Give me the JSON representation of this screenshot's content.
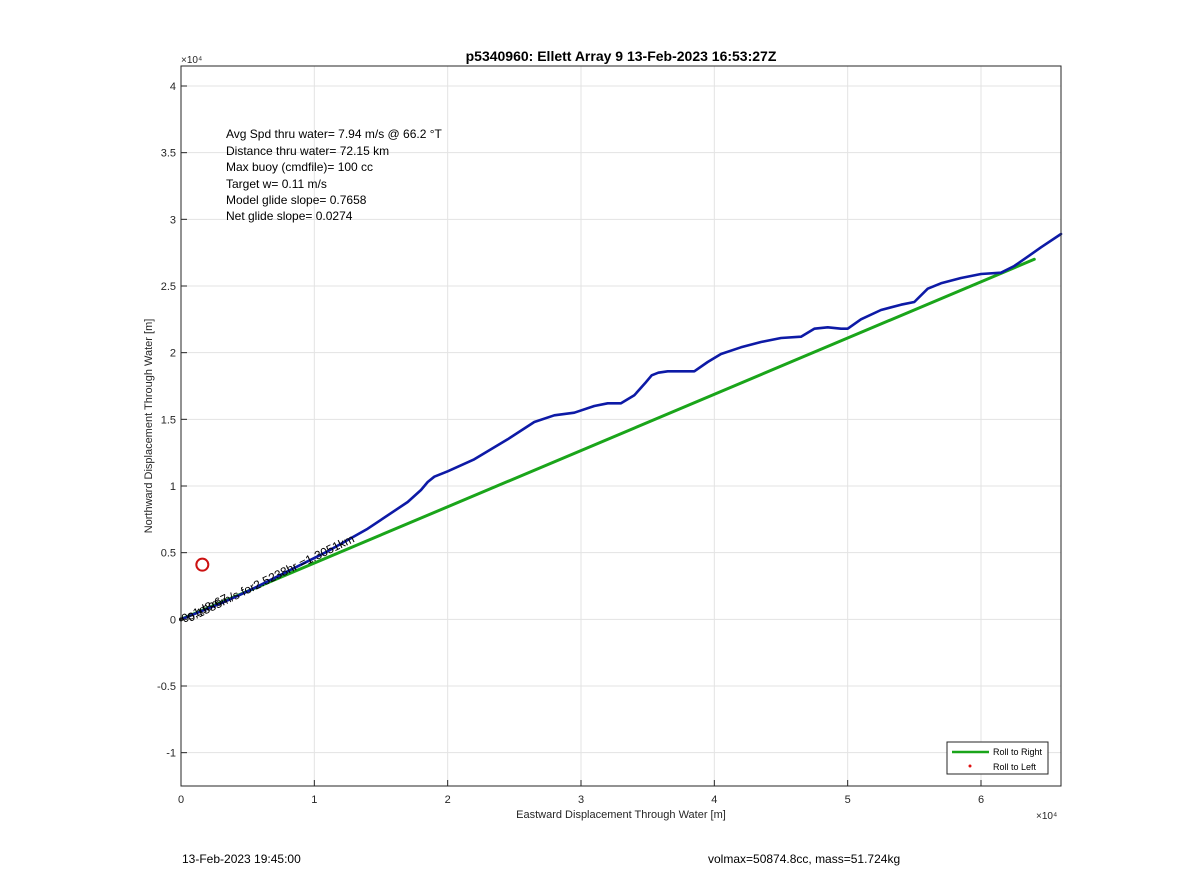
{
  "chart_data": {
    "type": "line",
    "title": "p5340960: Ellett Array 9 13-Feb-2023 16:53:27Z",
    "xlabel": "Eastward Displacement Through Water [m]",
    "ylabel": "Northward Displacement Through Water [m]",
    "xlim": [
      0,
      66000
    ],
    "ylim": [
      -12500,
      41500
    ],
    "x_ticks": [
      0,
      10000,
      20000,
      30000,
      40000,
      50000,
      60000
    ],
    "x_tick_labels": [
      "0",
      "1",
      "2",
      "3",
      "4",
      "5",
      "6"
    ],
    "y_ticks": [
      -10000,
      -5000,
      0,
      5000,
      10000,
      15000,
      20000,
      25000,
      30000,
      35000,
      40000
    ],
    "y_tick_labels": [
      "-1",
      "-0.5",
      "0",
      "0.5",
      "1",
      "1.5",
      "2",
      "2.5",
      "3",
      "3.5",
      "4"
    ],
    "x_exponent": "×10⁴",
    "y_exponent": "×10⁴",
    "grid": true,
    "legend_position": "bottom-right",
    "series": [
      {
        "name": "Roll to Right",
        "color": "#1aa51a",
        "x": [
          0,
          64000
        ],
        "y": [
          0,
          27000
        ]
      },
      {
        "color": "#0d1aa6",
        "x": [
          0,
          500,
          1500,
          3000,
          5000,
          8000,
          11000,
          14000,
          17000,
          18000,
          18500,
          19000,
          20000,
          22000,
          24500,
          26500,
          28000,
          29500,
          31000,
          32000,
          33000,
          34000,
          34800,
          35300,
          35800,
          36500,
          37500,
          38500,
          39500,
          40500,
          42000,
          43500,
          45000,
          46500,
          47500,
          48500,
          49500,
          50000,
          51000,
          52500,
          54000,
          55000,
          56000,
          57000,
          58500,
          60000,
          61500,
          62500,
          63500,
          64500,
          66000
        ],
        "y": [
          0,
          200,
          600,
          1200,
          2100,
          3600,
          5100,
          6800,
          8800,
          9700,
          10300,
          10700,
          11100,
          12000,
          13500,
          14800,
          15300,
          15500,
          16000,
          16200,
          16200,
          16800,
          17700,
          18300,
          18500,
          18600,
          18600,
          18600,
          19300,
          19900,
          20400,
          20800,
          21100,
          21200,
          21800,
          21900,
          21800,
          21800,
          22500,
          23200,
          23600,
          23800,
          24800,
          25200,
          25600,
          25900,
          26000,
          26500,
          27200,
          27900,
          28900
        ]
      },
      {
        "name": "Roll to Left",
        "color": "#e01010",
        "x": [],
        "y": []
      }
    ],
    "annotations": [
      "Avg Spd thru water=  7.94 m/s @  66.2 °T",
      "Distance thru water= 72.15 km",
      "Max buoy (cmdfile)= 100 cc",
      "Target w= 0.11 m/s",
      "Model glide slope= 0.7658",
      "Net glide slope= 0.0274"
    ],
    "overlap_label": "0.1535m/s for2.5238hr =1.3051km",
    "overlap_label_under": "0s1d8r67",
    "markers": [
      {
        "label": "circle",
        "x": 1600,
        "y": 4100,
        "color": "#cc1111"
      }
    ]
  },
  "footer": {
    "left": "13-Feb-2023 19:45:00",
    "right": "volmax=50874.8cc, mass=51.724kg"
  }
}
